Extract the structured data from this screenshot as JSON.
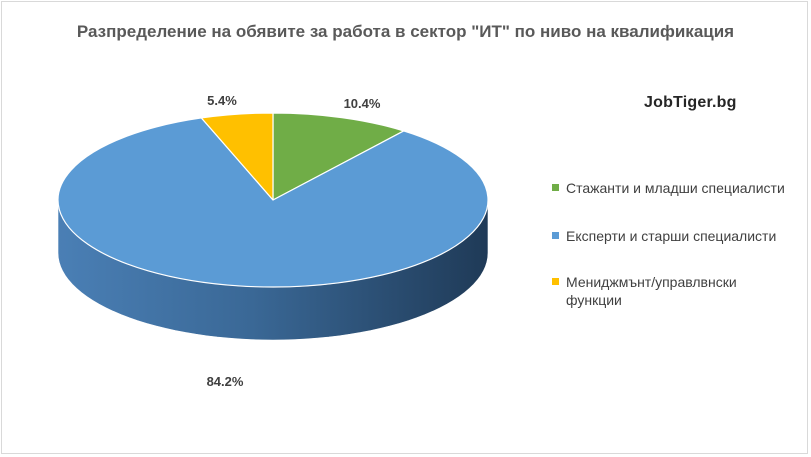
{
  "chart_data": {
    "type": "pie",
    "style": "3d",
    "title": "Разпределение на обявите за работа в сектор \"ИТ\" по ниво на квалификация",
    "categories": [
      "Стажанти и младши специалисти",
      "Експерти и старши специалисти",
      "Мениджмънт/управлвнски функции"
    ],
    "values": [
      10.4,
      84.2,
      5.4
    ],
    "data_labels": [
      "10.4%",
      "84.2%",
      "5.4%"
    ],
    "colors": [
      "#70ad47",
      "#5b9bd5",
      "#ffc000"
    ],
    "legend_position": "right",
    "watermark": "JobTiger.bg"
  }
}
